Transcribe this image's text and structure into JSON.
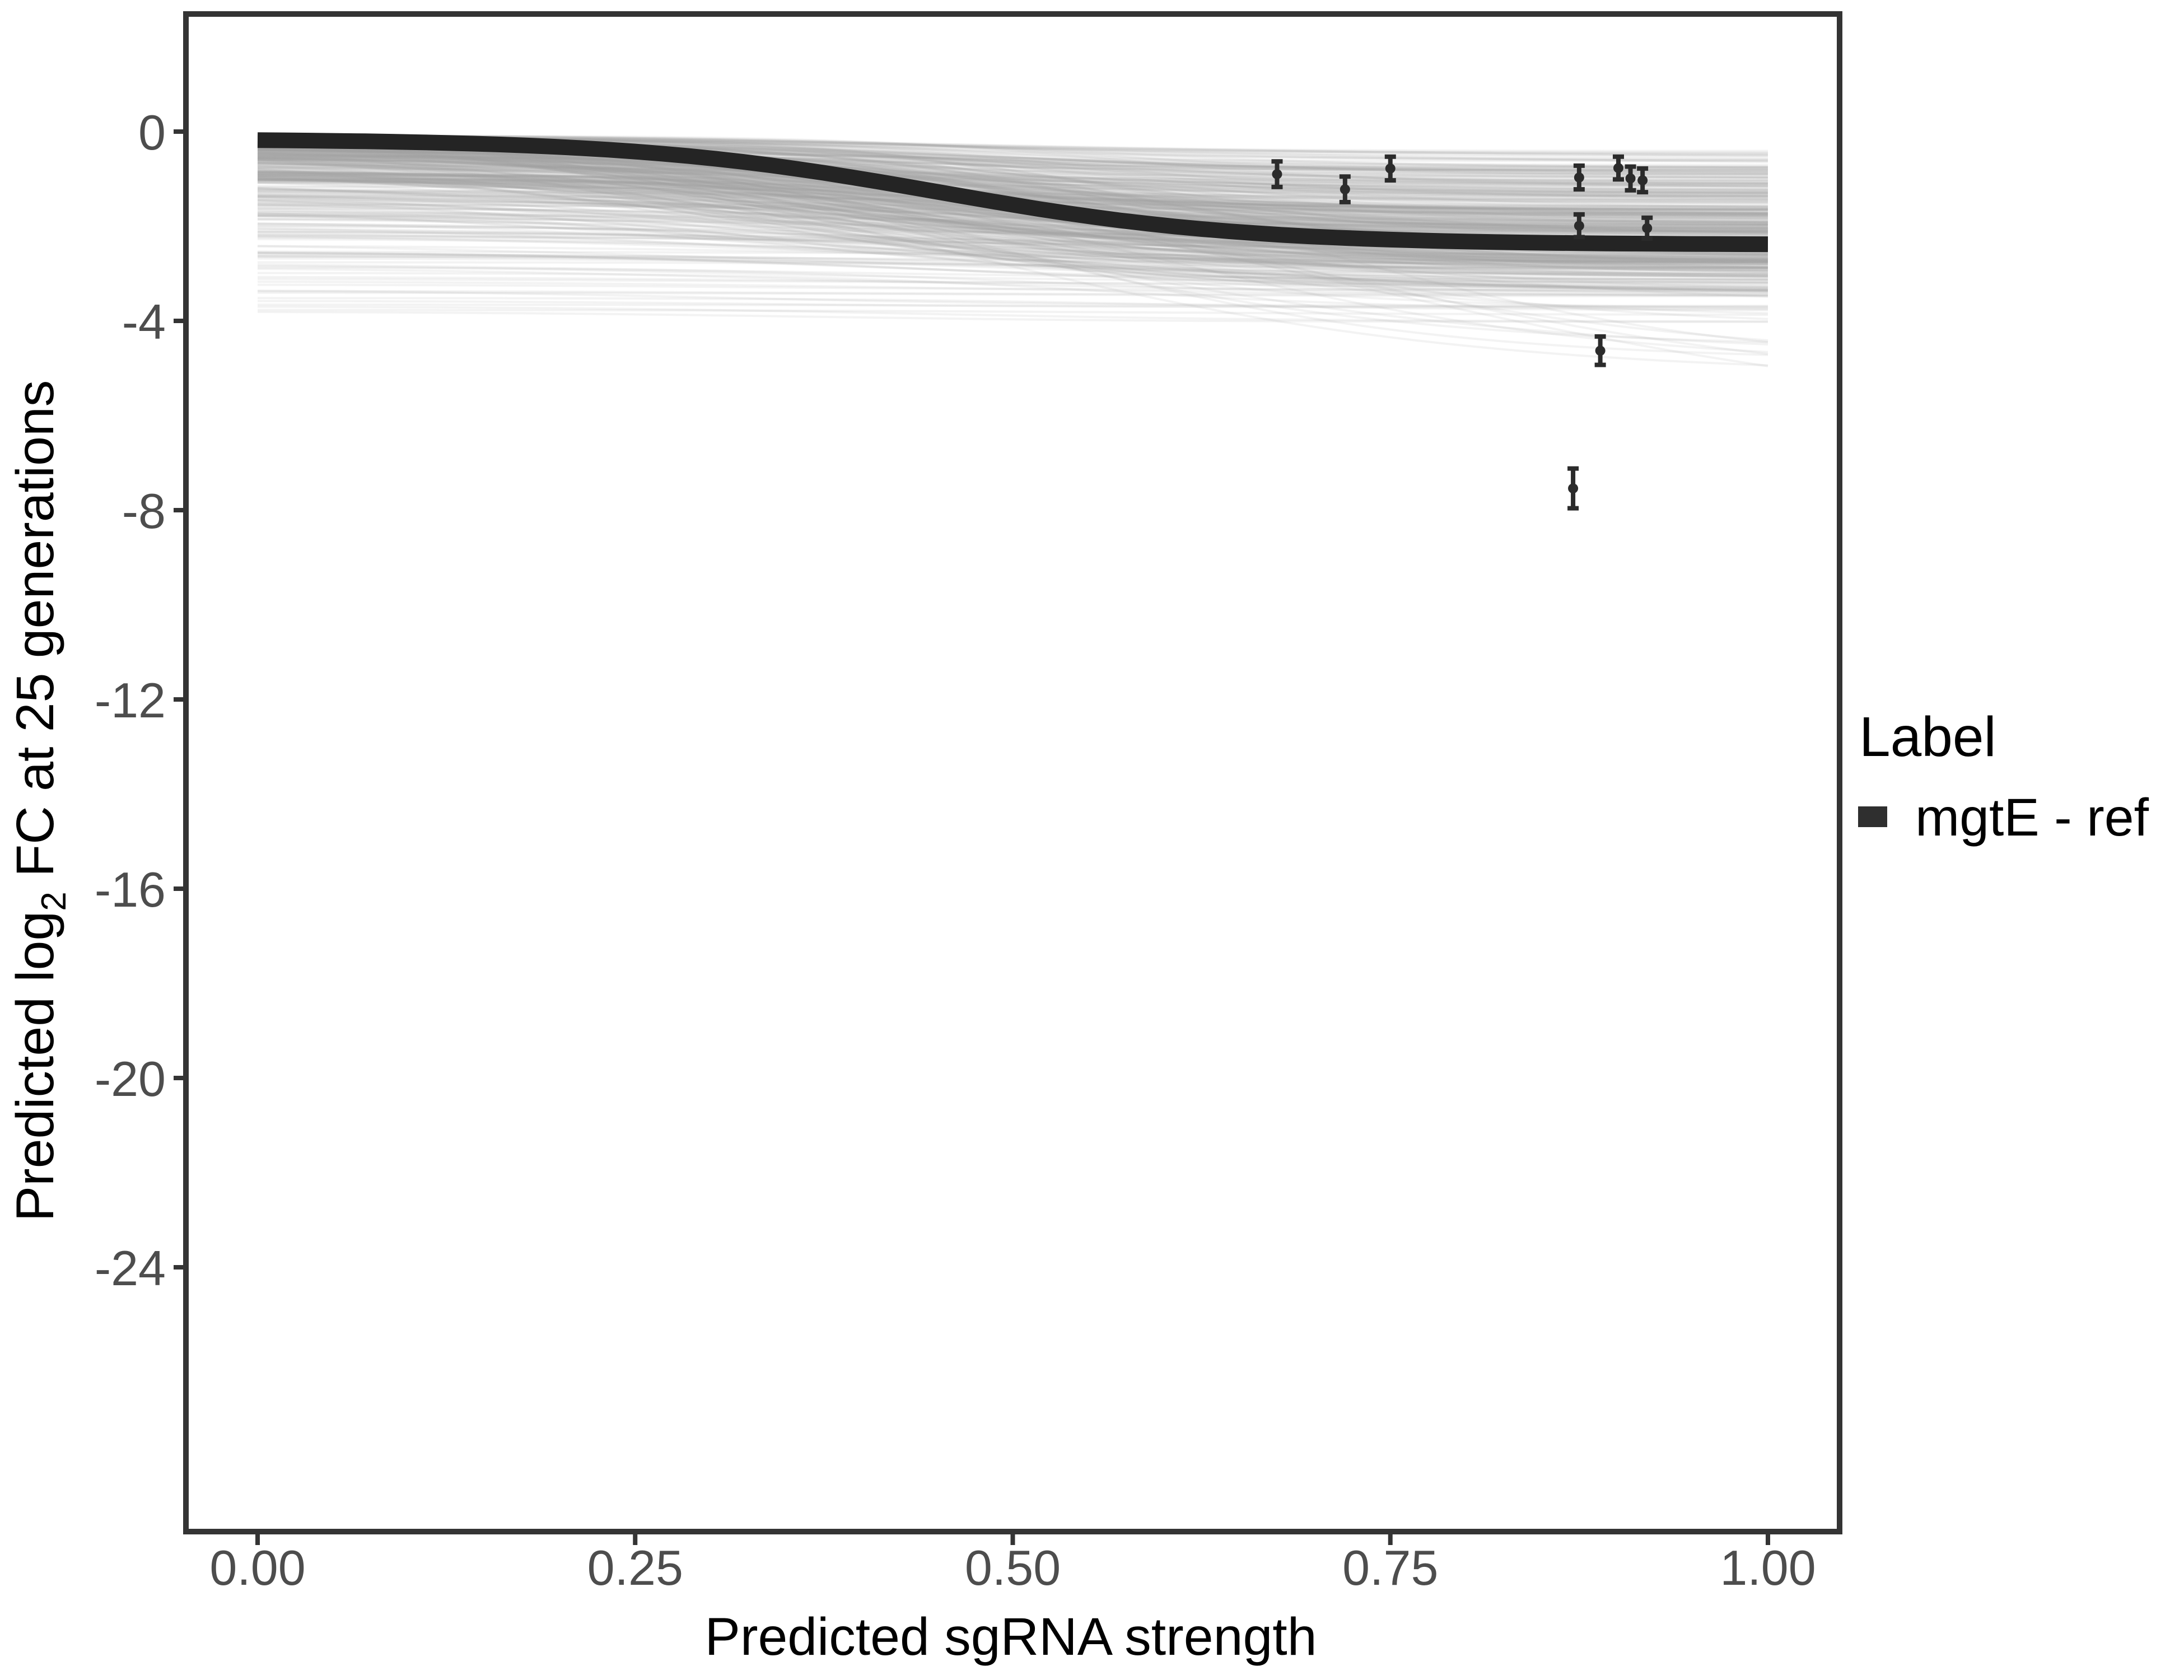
{
  "figure": {
    "xlabel": "Predicted sgRNA strength",
    "ylabel_prefix": "Predicted  log",
    "ylabel_sub": "2",
    "ylabel_suffix": " FC at 25 generations"
  },
  "legend": {
    "title": "Label",
    "position": "right",
    "items": [
      {
        "label": "mgtE - ref",
        "key_color": "#2f2f2f",
        "key_shape": "thick-line"
      }
    ]
  },
  "style": {
    "background": "#ffffff",
    "axis_color": "#343434",
    "tick_label_color": "#4d4d4d",
    "title_color": "#000000",
    "reference_color": "#242424",
    "band_color": "#a6a6a6",
    "point_color": "#2b2b2b"
  },
  "chart_data": {
    "type": "line",
    "title": "",
    "xlabel": "Predicted sgRNA strength",
    "ylabel": "Predicted log2 FC at 25 generations",
    "grid": false,
    "legend_position": "right",
    "x_ticks": [
      "0.00",
      "0.25",
      "0.50",
      "0.75",
      "1.00"
    ],
    "x_tick_values": [
      0,
      0.25,
      0.5,
      0.75,
      1.0
    ],
    "y_ticks": [
      "0",
      "-4",
      "-8",
      "-12",
      "-16",
      "-20",
      "-24"
    ],
    "y_tick_values": [
      0,
      -4,
      -8,
      -12,
      -16,
      -20,
      -24
    ],
    "x_data_range": [
      0,
      1
    ],
    "panel_y_range": [
      -29.6,
      2.5
    ],
    "reference_curve": {
      "name": "mgtE - ref",
      "color": "#242424",
      "model": "y = b - A * (sig(k*(x-m)) - sig(-k*m)) / (sig(k*(1-m)) - sig(-k*m))",
      "params": {
        "b": -0.18,
        "A": 2.2,
        "m": 0.45,
        "k": 10
      },
      "x": [
        0,
        0.1,
        0.2,
        0.3,
        0.4,
        0.5,
        0.6,
        0.7,
        0.8,
        0.9,
        1.0
      ],
      "y": [
        -0.18,
        -0.22,
        -0.33,
        -0.56,
        -1.0,
        -1.55,
        -1.98,
        -2.22,
        -2.32,
        -2.37,
        -2.38
      ]
    },
    "posterior_draws": {
      "description": "ensemble of semi-transparent gray sigmoid draws from x=0 to x=1",
      "count": 480,
      "seed": 42,
      "color": "#a6a6a6",
      "opacity": 0.13,
      "stroke_width": 4,
      "groups": [
        {
          "n": 330,
          "b": [
            -0.08,
            -1.05
          ],
          "b_pow": 1.7,
          "A": [
            0.25,
            2.6
          ],
          "A_pow": 0.9,
          "m": [
            0.28,
            0.58
          ],
          "k": [
            5.5,
            11.5
          ]
        },
        {
          "n": 85,
          "b": [
            -0.85,
            -1.8
          ],
          "b_pow": 1.0,
          "A": [
            0.2,
            2.0
          ],
          "A_pow": 1.0,
          "m": [
            0.3,
            0.6
          ],
          "k": [
            5.0,
            10.0
          ]
        },
        {
          "n": 40,
          "b": [
            -1.7,
            -3.0
          ],
          "b_pow": 1.0,
          "A": [
            0.1,
            1.0
          ],
          "A_pow": 1.0,
          "m": [
            0.3,
            0.6
          ],
          "k": [
            5.0,
            10.0
          ]
        },
        {
          "n": 13,
          "b": [
            -3.0,
            -3.85
          ],
          "b_pow": 1.0,
          "A": [
            0.03,
            0.35
          ],
          "A_pow": 1.0,
          "m": [
            0.3,
            0.6
          ],
          "k": [
            5.0,
            10.0
          ]
        },
        {
          "n": 12,
          "b": [
            -0.1,
            -0.5
          ],
          "b_pow": 1.0,
          "A": [
            3.2,
            5.2
          ],
          "A_pow": 1.0,
          "m": [
            0.45,
            0.72
          ],
          "k": [
            4.5,
            7.5
          ]
        }
      ]
    },
    "points": [
      {
        "x": 0.675,
        "y": -0.9,
        "ymin": -1.17,
        "ymax": -0.63
      },
      {
        "x": 0.72,
        "y": -1.22,
        "ymin": -1.49,
        "ymax": -0.95
      },
      {
        "x": 0.75,
        "y": -0.78,
        "ymin": -1.03,
        "ymax": -0.53
      },
      {
        "x": 0.875,
        "y": -0.97,
        "ymin": -1.22,
        "ymax": -0.72
      },
      {
        "x": 0.901,
        "y": -0.77,
        "ymin": -1.01,
        "ymax": -0.53
      },
      {
        "x": 0.909,
        "y": -0.99,
        "ymin": -1.24,
        "ymax": -0.74
      },
      {
        "x": 0.917,
        "y": -1.03,
        "ymin": -1.28,
        "ymax": -0.78
      },
      {
        "x": 0.875,
        "y": -1.99,
        "ymin": -2.23,
        "ymax": -1.75
      },
      {
        "x": 0.92,
        "y": -2.04,
        "ymin": -2.26,
        "ymax": -1.82
      },
      {
        "x": 0.889,
        "y": -4.63,
        "ymin": -4.93,
        "ymax": -4.33
      },
      {
        "x": 0.871,
        "y": -7.54,
        "ymin": -7.96,
        "ymax": -7.12
      }
    ]
  }
}
